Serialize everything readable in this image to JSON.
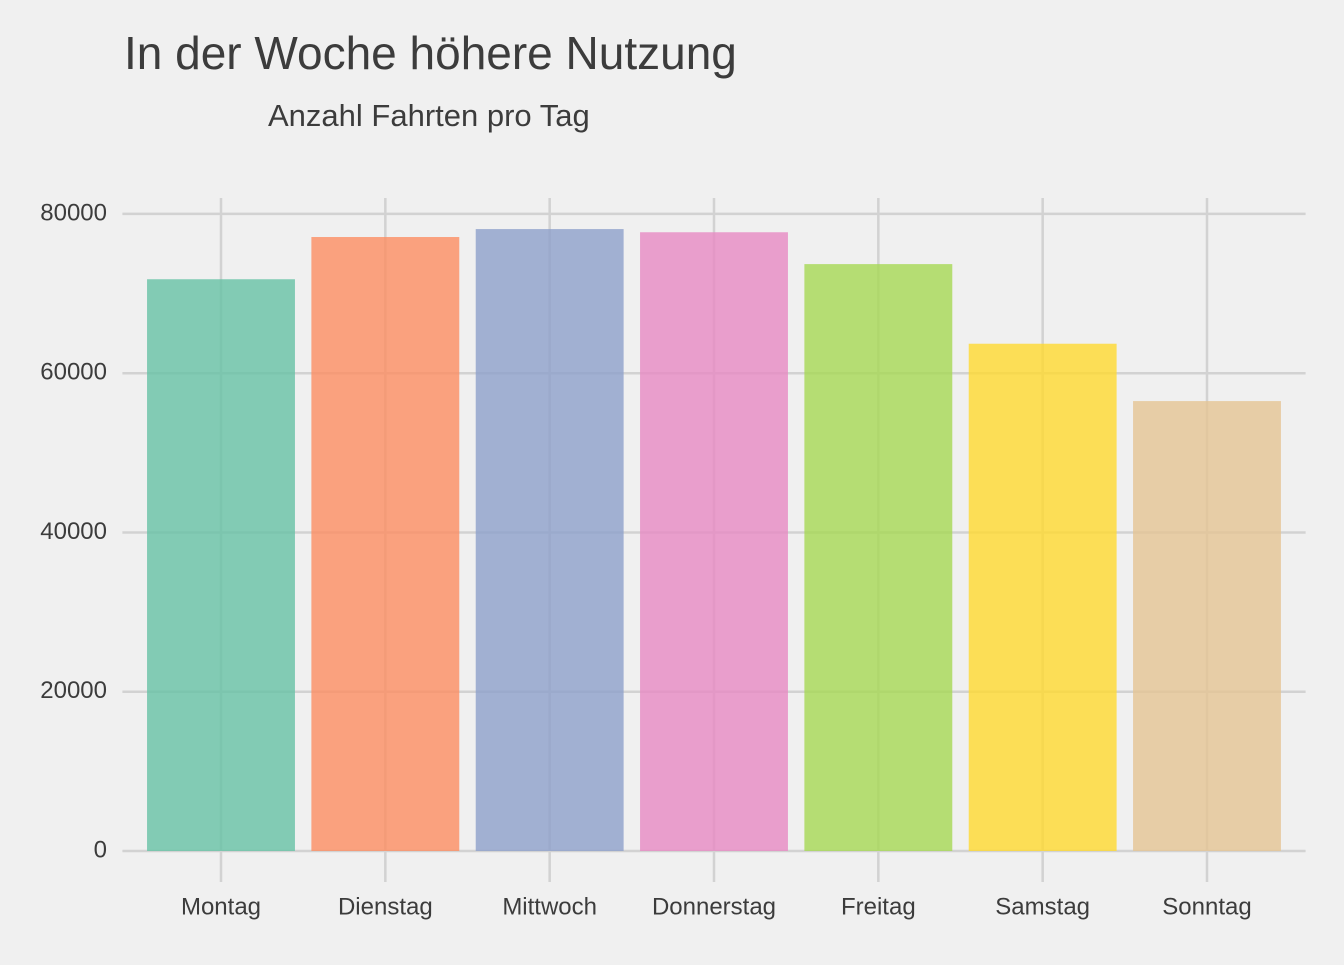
{
  "chart_data": {
    "type": "bar",
    "title": "In der Woche höhere Nutzung",
    "subtitle": "Anzahl Fahrten pro Tag",
    "categories": [
      "Montag",
      "Dienstag",
      "Mittwoch",
      "Donnerstag",
      "Freitag",
      "Samstag",
      "Sonntag"
    ],
    "values": [
      71800,
      77100,
      78100,
      77700,
      73700,
      63700,
      56500
    ],
    "colors": [
      "#66c2a5",
      "#fc8d62",
      "#8da0cb",
      "#e78ac3",
      "#a6d854",
      "#ffd92f",
      "#e5c494"
    ],
    "ylim": [
      0,
      82000
    ],
    "yticks": [
      0,
      20000,
      40000,
      60000,
      80000
    ],
    "grid": true
  }
}
